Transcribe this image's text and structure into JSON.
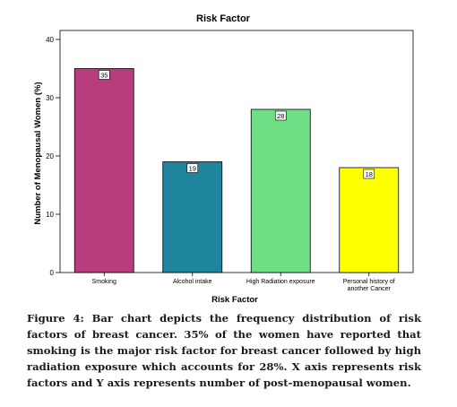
{
  "caption": "Figure 4: Bar chart depicts the frequency distribution of risk factors of breast cancer. 35% of the women have reported that smoking is the major risk factor for breast cancer followed by high radiation exposure which accounts for 28%. X axis represents risk factors and Y axis represents number of post-menopausal women.",
  "chart_data": {
    "type": "bar",
    "title": "Risk Factor",
    "xlabel": "Risk Factor",
    "ylabel": "Number of Menopausal Women (%)",
    "categories": [
      [
        "Smoking"
      ],
      [
        "Alcohol intake"
      ],
      [
        "High Radiation exposure"
      ],
      [
        "Personal history of",
        "another Cancer"
      ]
    ],
    "values": [
      35,
      19,
      28,
      18
    ],
    "data_labels": [
      "35",
      "19",
      "28",
      "18"
    ],
    "colors": [
      "#b93c7d",
      "#1f859e",
      "#6fdf85",
      "#ffff00"
    ],
    "ylim": [
      0,
      40
    ],
    "yticks": [
      0,
      10,
      20,
      30,
      40
    ],
    "grid": false,
    "legend": false
  }
}
